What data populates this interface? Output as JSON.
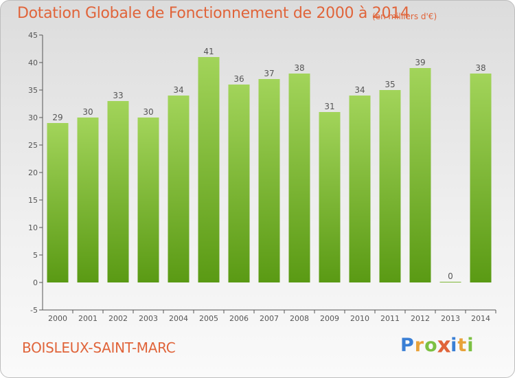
{
  "header": {
    "title": "Dotation Globale de Fonctionnement de 2000 à 2014",
    "unit": "(en milliers d'€)"
  },
  "footer": {
    "commune": "BOISLEUX-SAINT-MARC",
    "logo_text": "Proxiti",
    "logo_letters": [
      "P",
      "r",
      "o",
      "x",
      "i",
      "t",
      "i"
    ],
    "logo_colors": [
      "#3a7fd5",
      "#e8a23a",
      "#7cc042",
      "#e0643a",
      "#3a7fd5",
      "#e8a23a",
      "#7cc042"
    ]
  },
  "colors": {
    "bar_top": "#a2d45a",
    "bar_bottom": "#5a9a14",
    "accent": "#e0643a",
    "axis": "#555555"
  },
  "chart_data": {
    "type": "bar",
    "title": "Dotation Globale de Fonctionnement de 2000 à 2014",
    "subtitle": "(en milliers d'€)",
    "xlabel": "",
    "ylabel": "",
    "categories": [
      "2000",
      "2001",
      "2002",
      "2003",
      "2004",
      "2005",
      "2006",
      "2007",
      "2008",
      "2009",
      "2010",
      "2011",
      "2012",
      "2013",
      "2014"
    ],
    "values": [
      29,
      30,
      33,
      30,
      34,
      41,
      36,
      37,
      38,
      31,
      34,
      35,
      39,
      0,
      38
    ],
    "value_labels": [
      "29",
      "30",
      "33",
      "30",
      "34",
      "41",
      "36",
      "37",
      "38",
      "31",
      "34",
      "35",
      "39",
      "0",
      "38"
    ],
    "ylim": [
      -5,
      45
    ],
    "yticks": [
      -5,
      0,
      5,
      10,
      15,
      20,
      25,
      30,
      35,
      40,
      45
    ],
    "ytick_labels": [
      "-5",
      "0",
      "5",
      "10",
      "15",
      "20",
      "25",
      "30",
      "35",
      "40",
      "45"
    ],
    "grid": false,
    "legend": "none"
  }
}
